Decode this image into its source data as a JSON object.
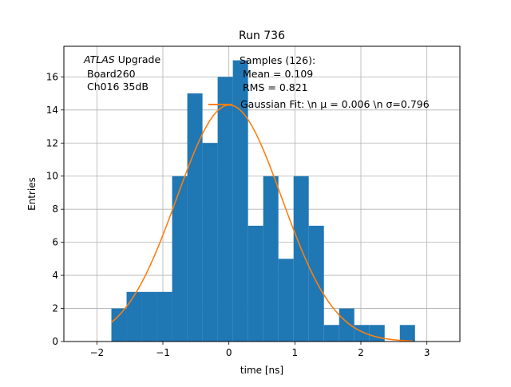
{
  "chart_data": {
    "type": "bar",
    "title": "Run 736",
    "xlabel": "time [ns]",
    "ylabel": "Entries",
    "xlim": [
      -2.5,
      3.5
    ],
    "ylim": [
      0,
      17.85
    ],
    "grid": true,
    "x_ticks": [
      -2,
      -1,
      0,
      1,
      2,
      3
    ],
    "x_tick_labels": [
      "−2",
      "−1",
      "0",
      "1",
      "2",
      "3"
    ],
    "y_ticks": [
      0,
      2,
      4,
      6,
      8,
      10,
      12,
      14,
      16
    ],
    "y_tick_labels": [
      "0",
      "2",
      "4",
      "6",
      "8",
      "10",
      "12",
      "14",
      "16"
    ],
    "histogram": {
      "bin_edges": [
        -1.78,
        -1.55,
        -1.32,
        -1.09,
        -0.86,
        -0.63,
        -0.4,
        -0.17,
        0.06,
        0.29,
        0.52,
        0.75,
        0.98,
        1.21,
        1.44,
        1.67,
        1.9,
        2.13,
        2.36,
        2.59,
        2.82
      ],
      "counts": [
        2,
        3,
        3,
        3,
        10,
        15,
        12,
        16,
        17,
        7,
        10,
        5,
        10,
        7,
        1,
        2,
        1,
        1,
        0,
        1
      ],
      "color": "#1f77b4"
    },
    "fit_curve": {
      "label": "Gaussian Fit: \\n $\\mu$ = 0.006 \\n $\\sigma$=0.796",
      "legend_text": "Gaussian Fit: \\n μ = 0.006 \\n σ=0.796",
      "mu": 0.006,
      "sigma": 0.796,
      "amplitude": 14.3,
      "x_range": [
        -1.78,
        2.78
      ],
      "color": "#ff7f0e"
    },
    "annotation_left": {
      "line1_italic": "ATLAS",
      "line1_rest": " Upgrade",
      "line2": "Board260",
      "line3": "Ch016 35dB"
    },
    "annotation_stats": {
      "line1": "Samples (126):",
      "line2": "Mean = 0.109",
      "line3": "RMS = 0.821"
    }
  }
}
